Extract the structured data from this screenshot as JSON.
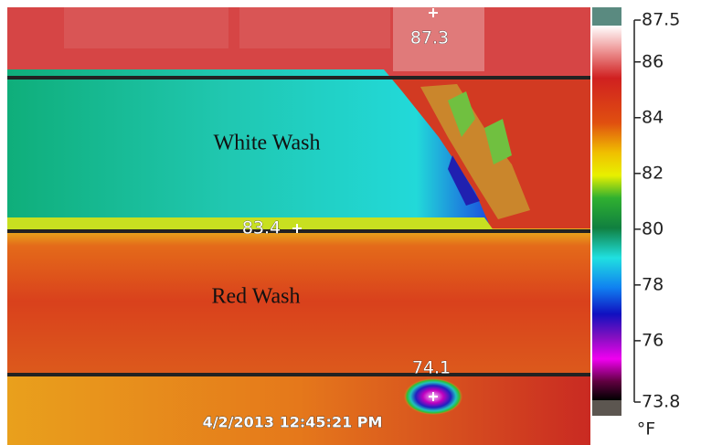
{
  "image": {
    "spots": [
      {
        "label": 87.3
      },
      {
        "label": 83.4
      },
      {
        "label": 74.1
      }
    ],
    "areas": [
      "White Wash",
      "Red Wash"
    ],
    "timestamp": "4/2/2013 12:45:21 PM"
  },
  "colorbar": {
    "ticks": [
      87.5,
      86,
      84,
      82,
      80,
      78,
      76,
      73.8
    ],
    "unit": "°F"
  }
}
